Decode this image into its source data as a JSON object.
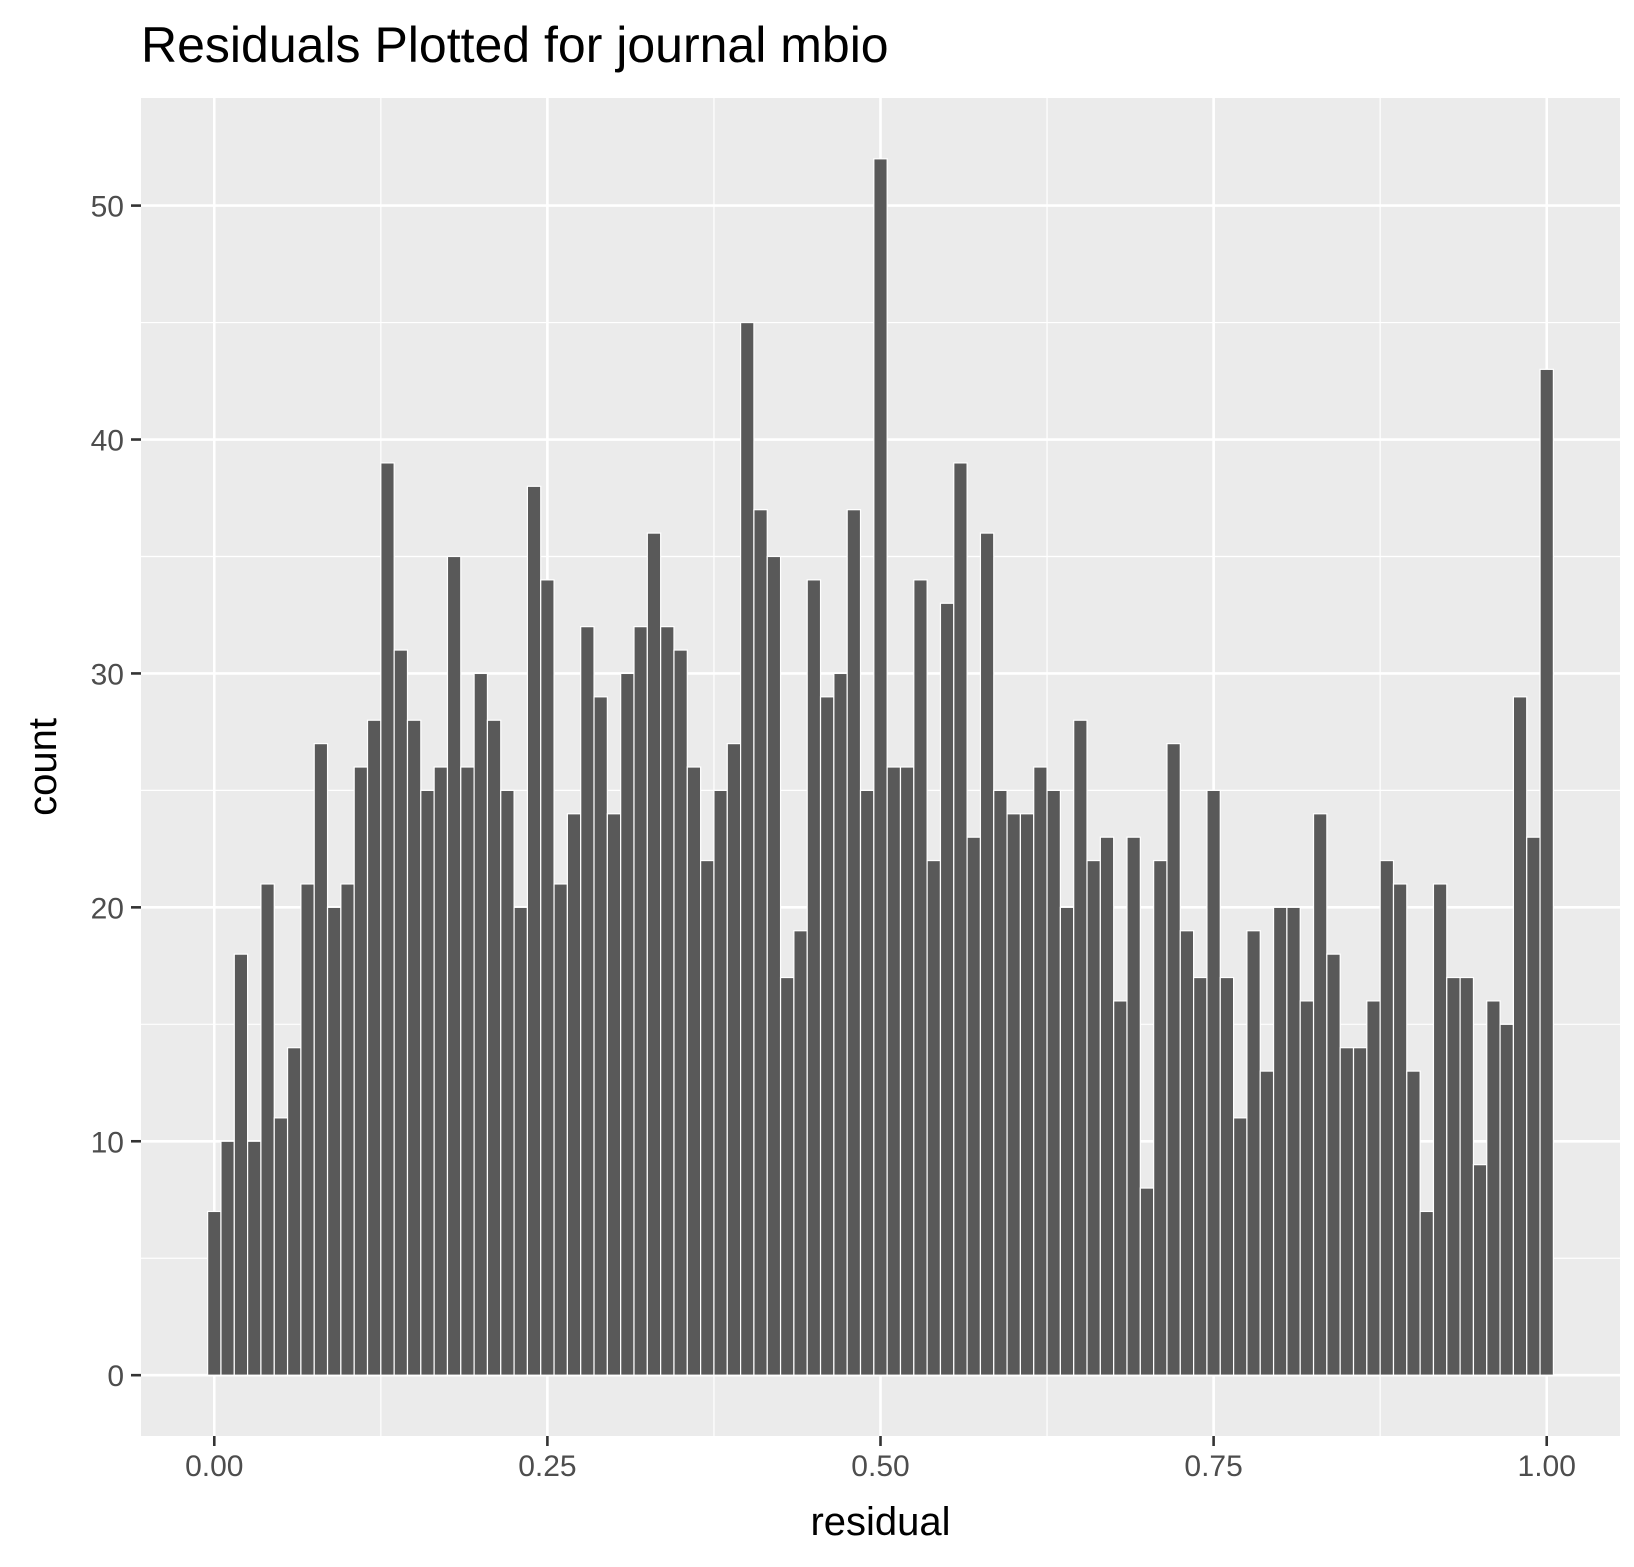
{
  "chart_data": {
    "type": "bar",
    "title": "Residuals Plotted for journal mbio",
    "xlabel": "residual",
    "ylabel": "count",
    "xlim": [
      -0.055,
      1.055
    ],
    "ylim": [
      -2.6,
      54.6
    ],
    "x_ticks": [
      0.0,
      0.25,
      0.5,
      0.75,
      1.0
    ],
    "x_tick_labels": [
      "0.00",
      "0.25",
      "0.50",
      "0.75",
      "1.00"
    ],
    "y_ticks": [
      0,
      10,
      20,
      30,
      40,
      50
    ],
    "y_tick_labels": [
      "0",
      "10",
      "20",
      "30",
      "40",
      "50"
    ],
    "grid": true,
    "legend": "none",
    "colors": {
      "bar_fill": "#595959",
      "bar_outline": "#ffffff",
      "panel_bg": "#ebebeb",
      "grid": "#ffffff",
      "text": "#4d4d4d"
    },
    "bins": {
      "start": 0.0,
      "width": 0.01,
      "centers": "0.00 to 1.00"
    },
    "values": [
      7,
      10,
      18,
      10,
      21,
      11,
      14,
      21,
      27,
      20,
      21,
      26,
      28,
      39,
      31,
      28,
      25,
      26,
      35,
      26,
      30,
      28,
      25,
      20,
      38,
      34,
      21,
      24,
      32,
      29,
      24,
      30,
      32,
      36,
      32,
      31,
      26,
      22,
      25,
      27,
      45,
      37,
      35,
      17,
      19,
      34,
      29,
      30,
      37,
      25,
      52,
      26,
      26,
      34,
      22,
      33,
      39,
      23,
      36,
      25,
      24,
      24,
      26,
      25,
      20,
      28,
      22,
      23,
      16,
      23,
      8,
      22,
      27,
      19,
      17,
      25,
      17,
      11,
      19,
      13,
      20,
      20,
      16,
      24,
      18,
      14,
      14,
      16,
      22,
      21,
      13,
      7,
      21,
      17,
      17,
      9,
      16,
      15,
      29,
      23,
      43
    ]
  }
}
